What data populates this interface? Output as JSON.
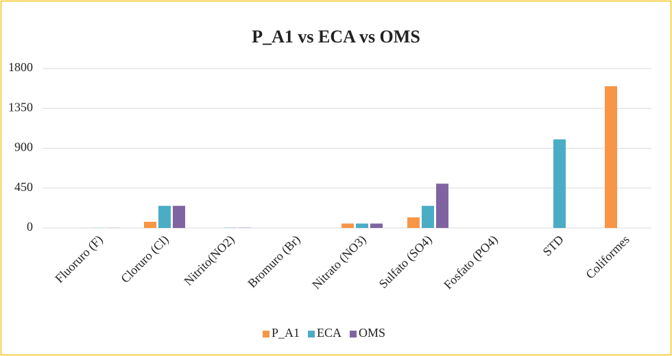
{
  "chart_data": {
    "type": "bar",
    "title": "P_A1 vs ECA vs OMS",
    "categories": [
      "Fluoruro (F)",
      "Cloruro (Cl)",
      "Nitrito(NO2)",
      "Bromuro (Br)",
      "Nitrato (NO3)",
      "Sulfato (SO4)",
      "Fosfato (PO4)",
      "STD",
      "Coliformes"
    ],
    "series": [
      {
        "name": "P_A1",
        "color": "#f79646",
        "values": [
          0.5,
          70,
          0.1,
          0.1,
          50,
          120,
          0.1,
          0,
          1600
        ]
      },
      {
        "name": "ECA",
        "color": "#4bacc6",
        "values": [
          1.5,
          250,
          3,
          0,
          50,
          250,
          0,
          1000,
          0
        ]
      },
      {
        "name": "OMS",
        "color": "#8064a2",
        "values": [
          1.5,
          250,
          3,
          0,
          50,
          500,
          0,
          0,
          0
        ]
      }
    ],
    "ylim": [
      0,
      1800
    ],
    "yticks": [
      0,
      450,
      900,
      1350,
      1800
    ],
    "grid": true,
    "legend": "bottom"
  }
}
